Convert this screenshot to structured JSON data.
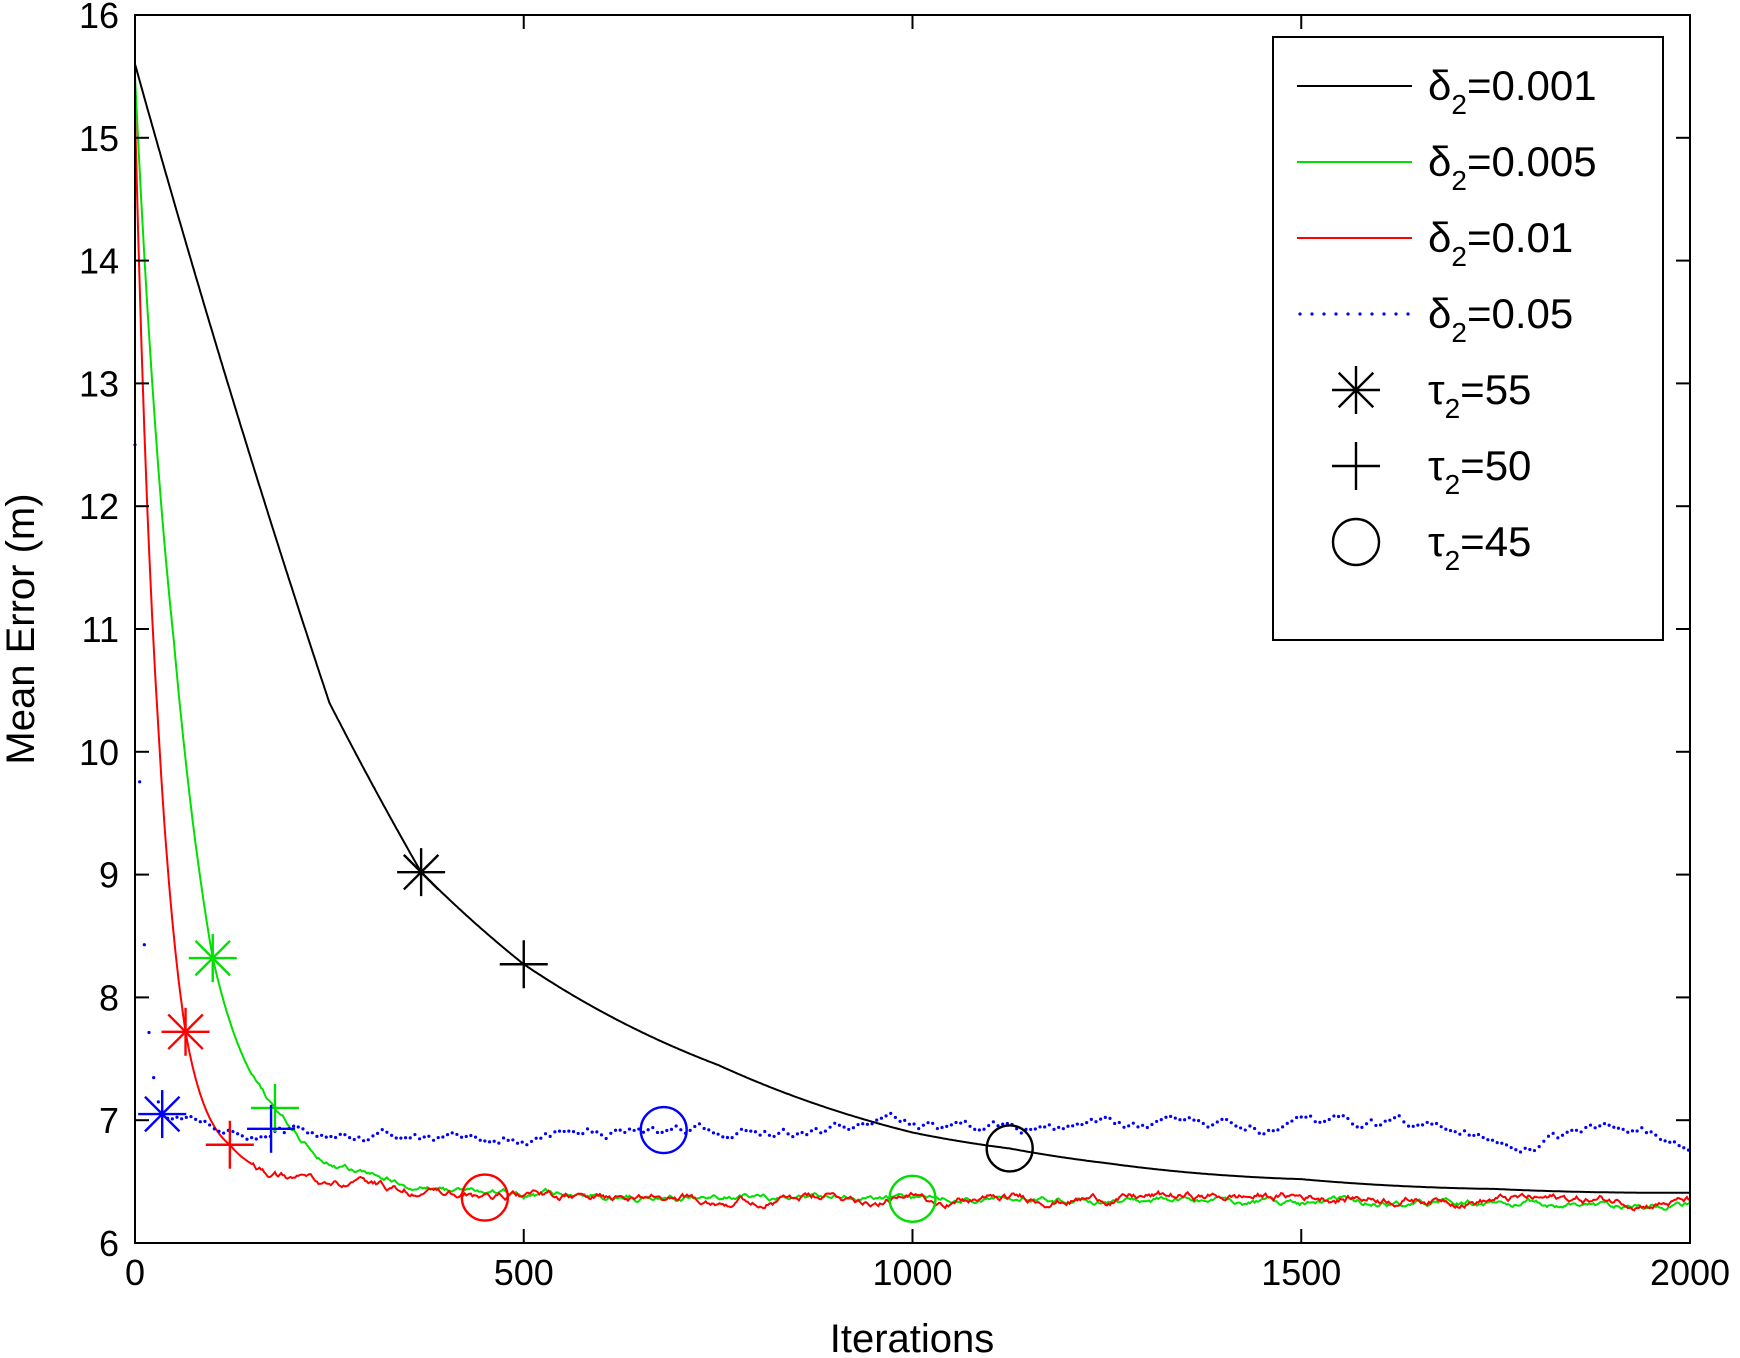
{
  "chart_data": {
    "type": "line",
    "title": "",
    "xlabel": "Iterations",
    "ylabel": "Mean Error (m)",
    "xlim": [
      0,
      2000
    ],
    "ylim": [
      6,
      16
    ],
    "xticks": [
      "0",
      "500",
      "1000",
      "1500",
      "2000"
    ],
    "yticks": [
      "6",
      "7",
      "8",
      "9",
      "10",
      "11",
      "12",
      "13",
      "14",
      "15",
      "16"
    ],
    "grid": false,
    "legend_position": "top-right",
    "series": [
      {
        "name": "δ2=0.001",
        "color": "#000000",
        "style": "solid",
        "start": 15.6,
        "floor": 6.2,
        "rate": 0.00137,
        "noise": 0.0,
        "x": [
          0,
          250,
          368,
          500,
          750,
          1000,
          1125,
          1250,
          1500,
          1750,
          2000
        ],
        "values": [
          15.6,
          10.4,
          9.02,
          8.27,
          7.45,
          6.9,
          6.77,
          6.65,
          6.52,
          6.44,
          6.41
        ]
      },
      {
        "name": "δ2=0.005",
        "color": "#00e000",
        "style": "solid",
        "start": 15.5,
        "floor": 6.37,
        "rate": 0.0152,
        "noise": 0.03,
        "x": [
          0,
          50,
          100,
          180,
          300,
          450,
          1000,
          1500,
          2000
        ],
        "values": [
          15.5,
          10.9,
          8.32,
          7.1,
          6.55,
          6.4,
          6.36,
          6.33,
          6.3
        ]
      },
      {
        "name": "δ2=0.01",
        "color": "#ff0000",
        "style": "solid",
        "start": 15.2,
        "floor": 6.38,
        "rate": 0.03,
        "noise": 0.04,
        "x": [
          0,
          30,
          65,
          122,
          200,
          450,
          1000,
          1500,
          2000
        ],
        "values": [
          15.2,
          10.2,
          7.72,
          6.8,
          6.52,
          6.37,
          6.36,
          6.38,
          6.34
        ]
      },
      {
        "name": "δ2=0.05",
        "color": "#0000ff",
        "style": "dotted",
        "start": 12.5,
        "floor": 6.92,
        "rate": 0.12,
        "noise": 0.07,
        "x": [
          0,
          10,
          35,
          175,
          680,
          1000,
          1500,
          2000
        ],
        "values": [
          12.5,
          8.8,
          7.05,
          6.93,
          6.92,
          6.93,
          6.9,
          6.88
        ]
      }
    ],
    "markers": [
      {
        "shape": "asterisk",
        "series": "δ2=0.001",
        "color": "#000000",
        "x": 368,
        "y": 9.02
      },
      {
        "shape": "plus",
        "series": "δ2=0.001",
        "color": "#000000",
        "x": 500,
        "y": 8.27
      },
      {
        "shape": "circle",
        "series": "δ2=0.001",
        "color": "#000000",
        "x": 1125,
        "y": 6.77
      },
      {
        "shape": "asterisk",
        "series": "δ2=0.005",
        "color": "#00e000",
        "x": 100,
        "y": 8.32
      },
      {
        "shape": "plus",
        "series": "δ2=0.005",
        "color": "#00e000",
        "x": 180,
        "y": 7.1
      },
      {
        "shape": "circle",
        "series": "δ2=0.005",
        "color": "#00e000",
        "x": 1000,
        "y": 6.36
      },
      {
        "shape": "asterisk",
        "series": "δ2=0.01",
        "color": "#ff0000",
        "x": 65,
        "y": 7.72
      },
      {
        "shape": "plus",
        "series": "δ2=0.01",
        "color": "#ff0000",
        "x": 122,
        "y": 6.8
      },
      {
        "shape": "circle",
        "series": "δ2=0.01",
        "color": "#ff0000",
        "x": 450,
        "y": 6.37
      },
      {
        "shape": "asterisk",
        "series": "δ2=0.05",
        "color": "#0000ff",
        "x": 35,
        "y": 7.05
      },
      {
        "shape": "plus",
        "series": "δ2=0.05",
        "color": "#0000ff",
        "x": 175,
        "y": 6.93
      },
      {
        "shape": "circle",
        "series": "δ2=0.05",
        "color": "#0000ff",
        "x": 680,
        "y": 6.92
      }
    ],
    "legend": [
      {
        "kind": "line",
        "style": "solid",
        "color": "#000000",
        "base": "δ",
        "sub": "2",
        "rest": "=0.001"
      },
      {
        "kind": "line",
        "style": "solid",
        "color": "#00e000",
        "base": "δ",
        "sub": "2",
        "rest": "=0.005"
      },
      {
        "kind": "line",
        "style": "solid",
        "color": "#ff0000",
        "base": "δ",
        "sub": "2",
        "rest": "=0.01"
      },
      {
        "kind": "line",
        "style": "dotted",
        "color": "#0000ff",
        "base": "δ",
        "sub": "2",
        "rest": "=0.05"
      },
      {
        "kind": "asterisk",
        "color": "#000000",
        "base": "τ",
        "sub": "2",
        "rest": "=55"
      },
      {
        "kind": "plus",
        "color": "#000000",
        "base": "τ",
        "sub": "2",
        "rest": "=50"
      },
      {
        "kind": "circle",
        "color": "#000000",
        "base": "τ",
        "sub": "2",
        "rest": "=45"
      }
    ]
  }
}
